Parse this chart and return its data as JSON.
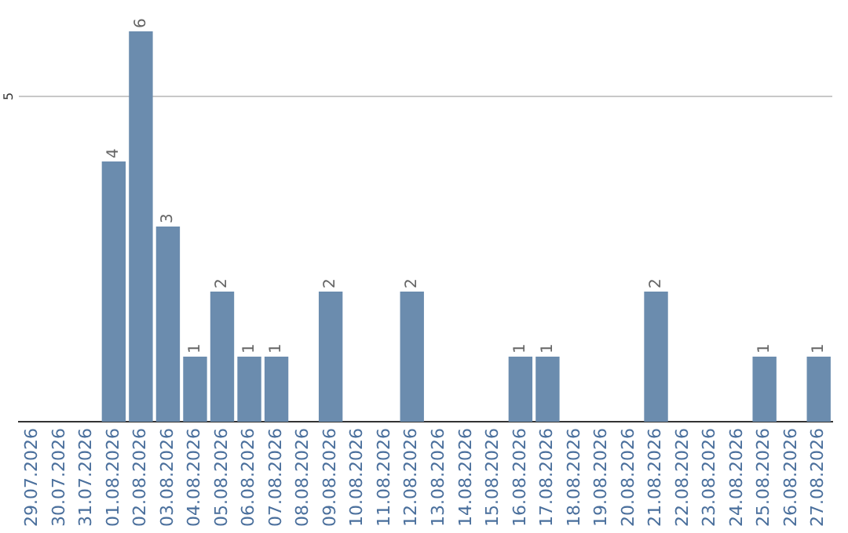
{
  "chart_data": {
    "type": "bar",
    "categories": [
      "29.07.2026",
      "30.07.2026",
      "31.07.2026",
      "01.08.2026",
      "02.08.2026",
      "03.08.2026",
      "04.08.2026",
      "05.08.2026",
      "06.08.2026",
      "07.08.2026",
      "08.08.2026",
      "09.08.2026",
      "10.08.2026",
      "11.08.2026",
      "12.08.2026",
      "13.08.2026",
      "14.08.2026",
      "15.08.2026",
      "16.08.2026",
      "17.08.2026",
      "18.08.2026",
      "19.08.2026",
      "20.08.2026",
      "21.08.2026",
      "22.08.2026",
      "23.08.2026",
      "24.08.2026",
      "25.08.2026",
      "26.08.2026",
      "27.08.2026"
    ],
    "values": [
      0,
      0,
      0,
      4,
      6,
      3,
      1,
      2,
      1,
      1,
      0,
      2,
      0,
      0,
      2,
      0,
      0,
      0,
      1,
      1,
      0,
      0,
      0,
      2,
      0,
      0,
      0,
      1,
      0,
      1
    ],
    "value_labels": [
      null,
      null,
      null,
      "4",
      "6",
      "3",
      "1",
      "2",
      "1",
      "1",
      null,
      "2",
      null,
      null,
      "2",
      null,
      null,
      null,
      "1",
      "1",
      null,
      null,
      null,
      "2",
      null,
      null,
      null,
      "1",
      null,
      "1"
    ],
    "color": "#6b8cae",
    "ref_lines": [
      {
        "axis": "y",
        "value": 5,
        "label": "5",
        "color": "#c8c8c8"
      }
    ],
    "legend": false
  }
}
